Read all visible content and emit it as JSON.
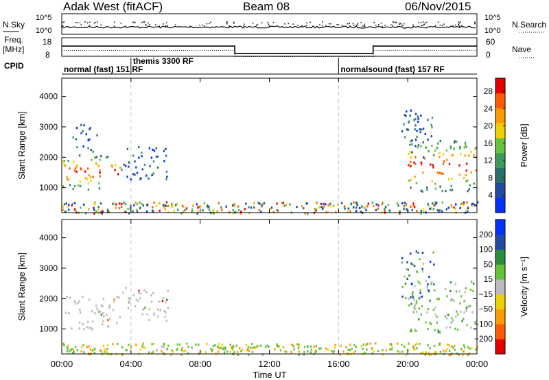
{
  "header": {
    "site": "Adak West (fitACF)",
    "beam": "Beam 08",
    "date": "06/Nov/2015"
  },
  "noise_panel": {
    "left_label": "N.Sky",
    "left_ticks": [
      "10^5",
      "10^0"
    ],
    "right_label": "N.Search",
    "right_ticks": [
      "10^5",
      "10^0"
    ]
  },
  "freq_panel": {
    "left_label_line1": "Freq.",
    "left_label_line2": "[MHz]",
    "left_ticks": [
      "18",
      "8"
    ],
    "right_label": "Nave",
    "right_ticks": [
      "60",
      "0"
    ],
    "steps": [
      {
        "start": 0.0,
        "end": 10.0,
        "freq_frac": 0.55
      },
      {
        "start": 10.0,
        "end": 18.0,
        "freq_frac": 0.15
      },
      {
        "start": 18.0,
        "end": 24.0,
        "freq_frac": 0.55
      }
    ]
  },
  "cpid": {
    "label": "CPID",
    "segments": [
      {
        "text": "normal (fast) 151 RF",
        "start": 0.0
      },
      {
        "text": "themis 3300 RF",
        "start": 4.0
      },
      {
        "text": "normalsound (fast) 157 RF",
        "start": 16.0
      }
    ]
  },
  "colors": {
    "power": [
      "#0033ff",
      "#234aa6",
      "#2a6f68",
      "#3a9a5a",
      "#66c23b",
      "#f0d000",
      "#ff9900",
      "#ff5a00",
      "#e60000"
    ],
    "velocity": [
      "#e60000",
      "#ff5a00",
      "#ff9900",
      "#f0d000",
      "#bbbbbb",
      "#66c23b",
      "#2a8f3a",
      "#234aa6",
      "#0033ff"
    ]
  },
  "chart_data": [
    {
      "type": "heatmap",
      "name": "power",
      "xlabel": "Time UT",
      "ylabel": "Slant Range [km]",
      "x_ticks": [
        "00:00",
        "04:00",
        "08:00",
        "12:00",
        "16:00",
        "20:00",
        "00:00"
      ],
      "y_ticks": [
        "1000",
        "2000",
        "3000",
        "4000"
      ],
      "xlim": [
        0,
        24
      ],
      "ylim": [
        180,
        4600
      ],
      "colorbar_label": "Power [dB]",
      "colorbar_ticks": [
        "4",
        "8",
        "12",
        "16",
        "20",
        "24",
        "28"
      ],
      "colorbar_range": [
        0,
        31
      ],
      "regions": [
        {
          "t0": 0.0,
          "t1": 3.4,
          "r0": 950,
          "r1": 2100,
          "value": 26,
          "level": "strong"
        },
        {
          "t0": 0.6,
          "t1": 2.0,
          "r0": 2200,
          "r1": 3100,
          "value": 10,
          "level": "weak"
        },
        {
          "t0": 3.4,
          "t1": 6.2,
          "r0": 1300,
          "r1": 2400,
          "value": 12,
          "level": "weak"
        },
        {
          "t0": 4.5,
          "t1": 6.8,
          "r0": 330,
          "r1": 470,
          "value": 18,
          "level": "medium"
        },
        {
          "t0": 20.0,
          "t1": 24.0,
          "r0": 900,
          "r1": 2600,
          "value": 24,
          "level": "strong"
        },
        {
          "t0": 19.6,
          "t1": 21.5,
          "r0": 2000,
          "r1": 3600,
          "value": 10,
          "level": "weak"
        },
        {
          "t0": 0.0,
          "t1": 24.0,
          "r0": 180,
          "r1": 560,
          "value": 10,
          "level": "ground"
        }
      ]
    },
    {
      "type": "heatmap",
      "name": "velocity",
      "xlabel": "Time UT",
      "ylabel": "Slant Range [km]",
      "x_ticks": [
        "00:00",
        "04:00",
        "08:00",
        "12:00",
        "16:00",
        "20:00",
        "00:00"
      ],
      "y_ticks": [
        "1000",
        "2000",
        "3000",
        "4000"
      ],
      "xlim": [
        0,
        24
      ],
      "ylim": [
        180,
        4600
      ],
      "colorbar_label": "Velocity [m s⁻¹]",
      "colorbar_ticks": [
        "200",
        "100",
        "50",
        "15",
        "−15",
        "−50",
        "−100",
        "−200"
      ],
      "regions": [
        {
          "t0": 0.0,
          "t1": 3.4,
          "r0": 1000,
          "r1": 2100,
          "value": 0,
          "level": "gray"
        },
        {
          "t0": 3.4,
          "t1": 6.2,
          "r0": 1300,
          "r1": 2400,
          "value": 0,
          "level": "gray"
        },
        {
          "t0": 4.5,
          "t1": 6.8,
          "r0": 330,
          "r1": 470,
          "value": 0,
          "level": "gray"
        },
        {
          "t0": 20.0,
          "t1": 24.0,
          "r0": 900,
          "r1": 2600,
          "value": 40,
          "level": "green"
        },
        {
          "t0": 19.6,
          "t1": 21.5,
          "r0": 2000,
          "r1": 3600,
          "value": 60,
          "level": "mixed"
        },
        {
          "t0": 0.0,
          "t1": 24.0,
          "r0": 180,
          "r1": 560,
          "value": 0,
          "level": "ground"
        }
      ]
    }
  ]
}
